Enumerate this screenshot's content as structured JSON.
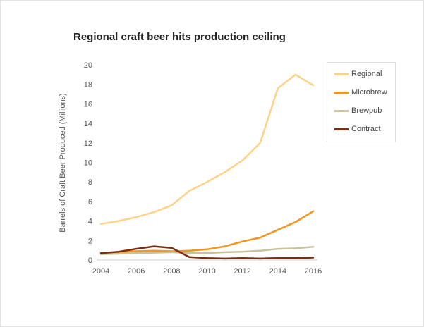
{
  "chart_data": {
    "type": "line",
    "title": "Regional craft beer hits production ceiling",
    "xlabel": "",
    "ylabel": "Barrels of Craft Beer Produced (Millions)",
    "xlim": [
      2004,
      2016
    ],
    "ylim": [
      0,
      20
    ],
    "x_ticks": [
      "2004",
      "2006",
      "2008",
      "2010",
      "2012",
      "2014",
      "2016"
    ],
    "y_ticks": [
      "0",
      "2",
      "4",
      "6",
      "8",
      "10",
      "12",
      "14",
      "16",
      "18",
      "20"
    ],
    "grid": false,
    "legend_position": "top-right",
    "x": [
      2004,
      2005,
      2006,
      2007,
      2008,
      2009,
      2010,
      2011,
      2012,
      2013,
      2014,
      2015,
      2016
    ],
    "series": [
      {
        "name": "Regional",
        "color": "#fdd38a",
        "values": [
          3.7,
          4.0,
          4.4,
          4.9,
          5.6,
          7.1,
          8.0,
          9.0,
          10.2,
          12.0,
          17.6,
          19.0,
          17.9
        ]
      },
      {
        "name": "Microbrew",
        "color": "#f7931e",
        "values": [
          0.7,
          0.8,
          0.9,
          0.95,
          0.9,
          0.95,
          1.1,
          1.4,
          1.9,
          2.3,
          3.1,
          3.9,
          5.0
        ]
      },
      {
        "name": "Brewpub",
        "color": "#c8c39a",
        "values": [
          0.6,
          0.65,
          0.7,
          0.75,
          0.8,
          0.7,
          0.7,
          0.8,
          0.85,
          0.95,
          1.15,
          1.2,
          1.35
        ]
      },
      {
        "name": "Contract",
        "color": "#7a2e0c",
        "values": [
          0.7,
          0.85,
          1.15,
          1.4,
          1.25,
          0.3,
          0.2,
          0.15,
          0.2,
          0.15,
          0.2,
          0.2,
          0.25
        ]
      }
    ]
  }
}
